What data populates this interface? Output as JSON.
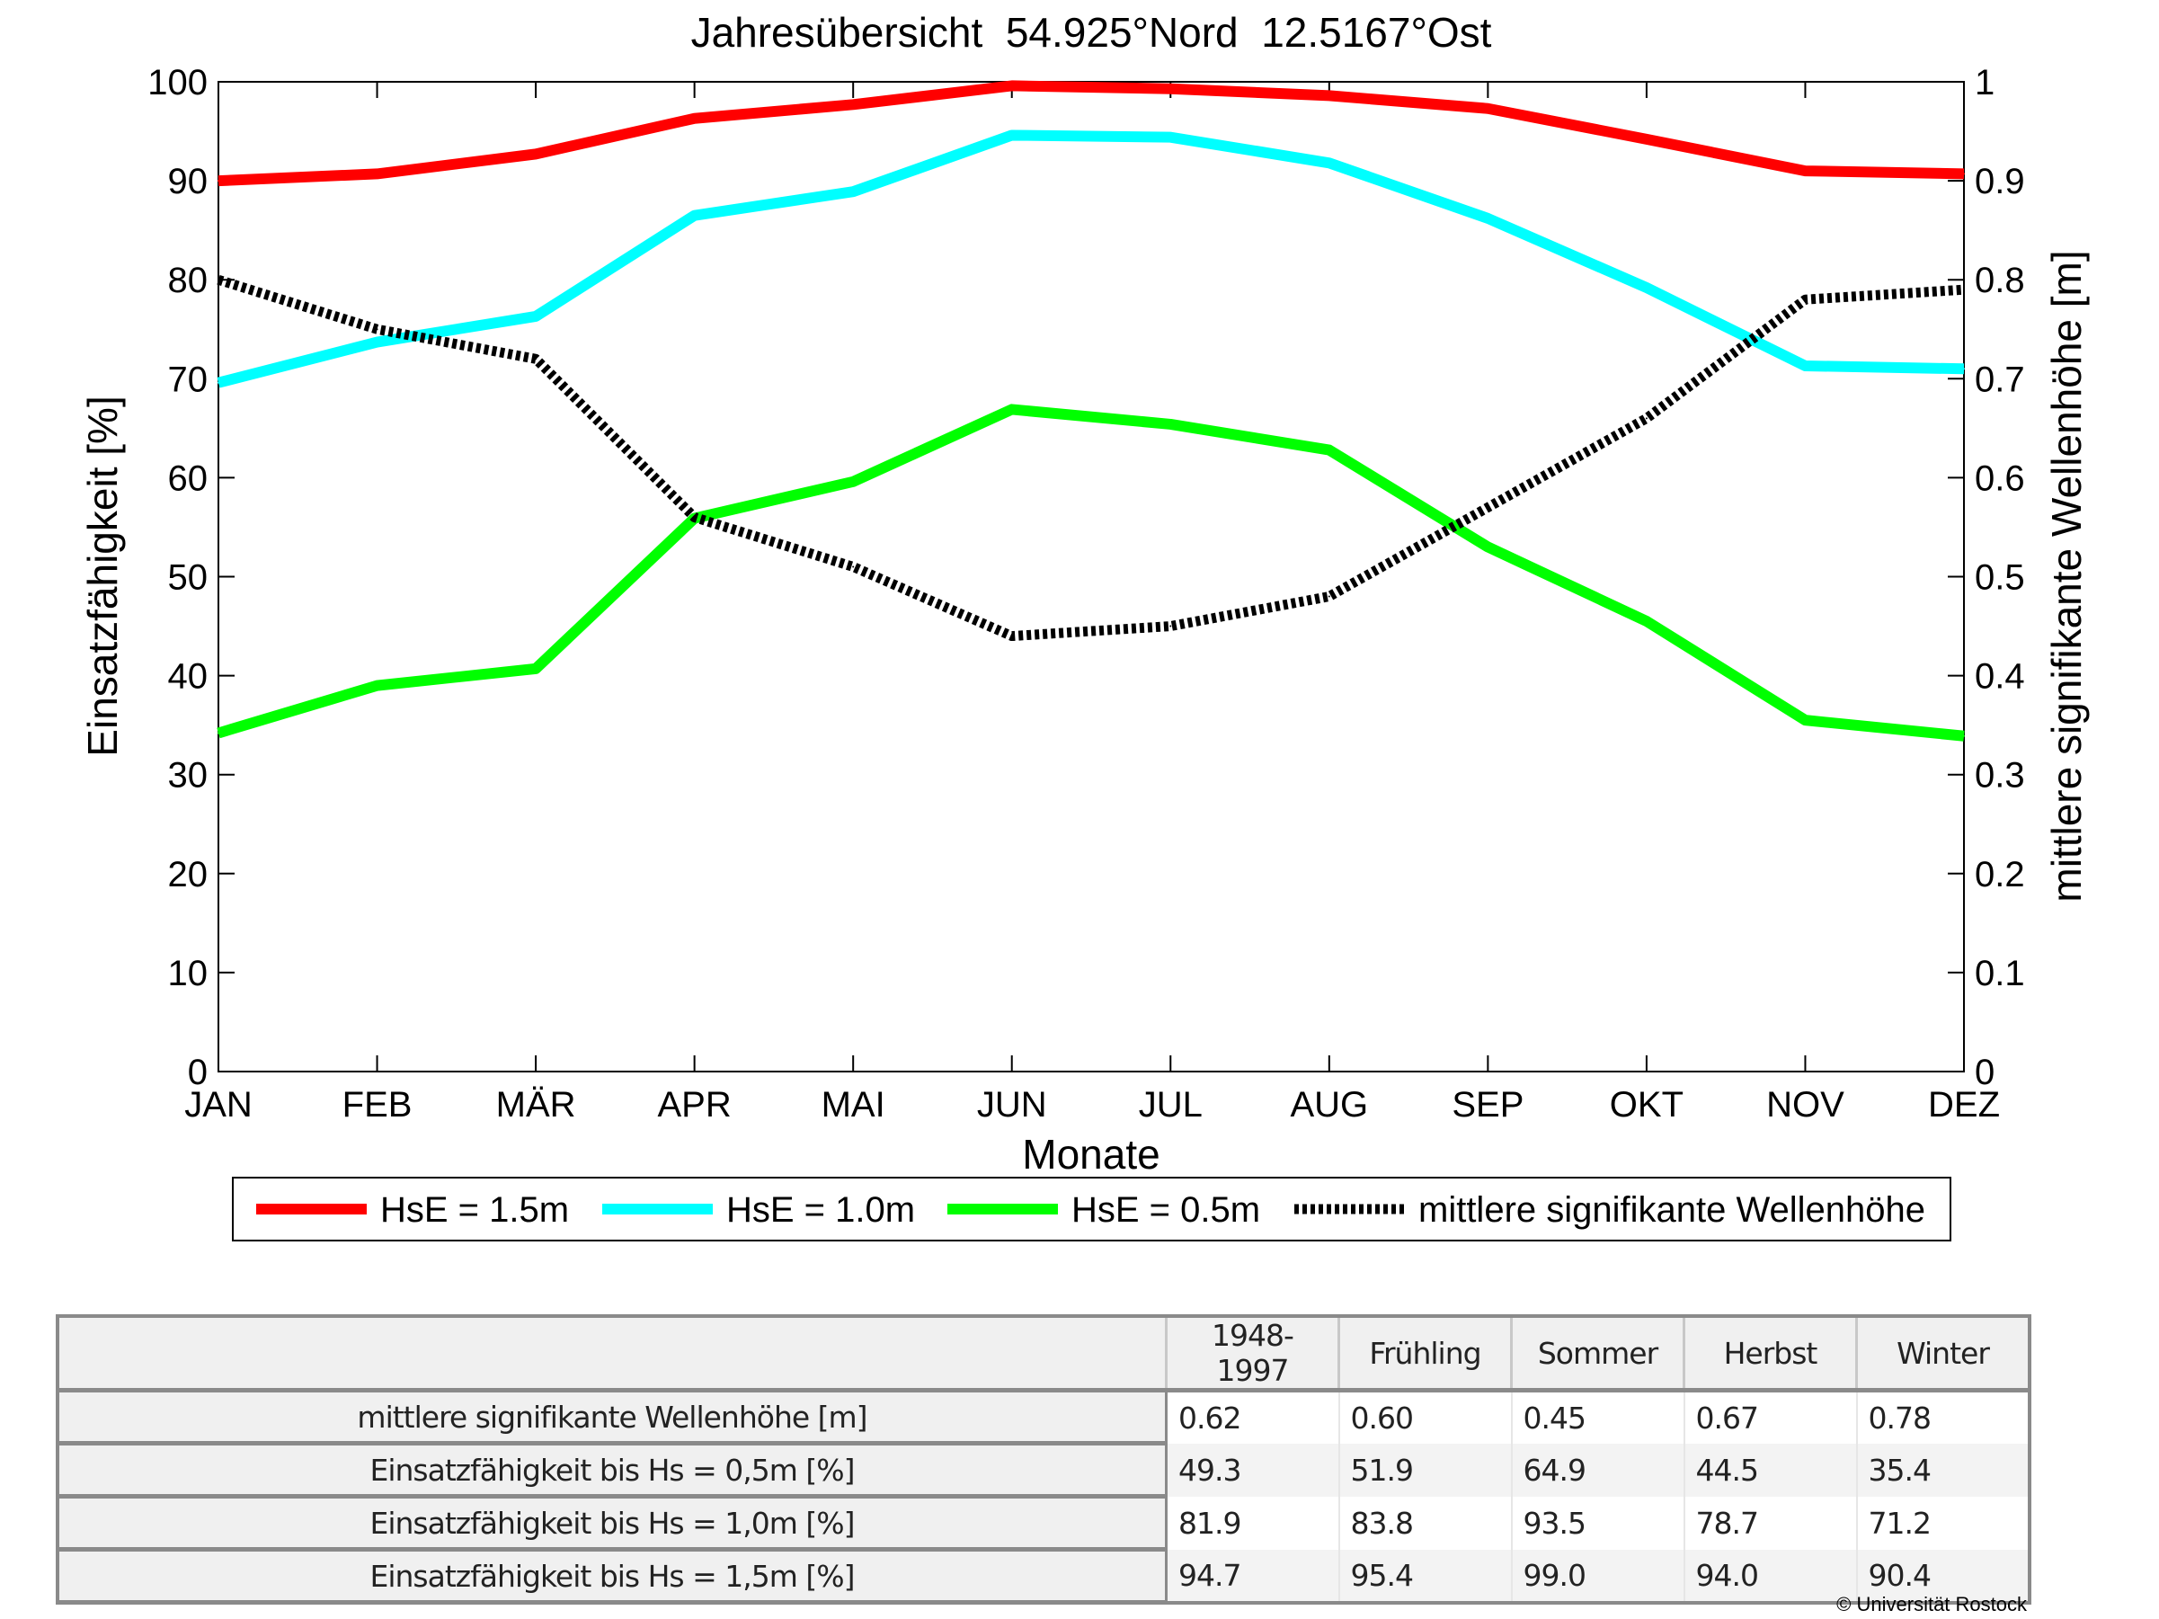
{
  "chart_data": {
    "type": "line",
    "title": "Jahresübersicht  54.925°Nord  12.5167°Ost",
    "xlabel": "Monate",
    "ylabel": "Einsatzfähigkeit [%]",
    "y2label": "mittlere signifikante Wellenhöhe [m]",
    "ylim": [
      0,
      100
    ],
    "y2lim": [
      0,
      1
    ],
    "yticks": [
      "0",
      "10",
      "20",
      "30",
      "40",
      "50",
      "60",
      "70",
      "80",
      "90",
      "100"
    ],
    "y2ticks": [
      "0",
      "0.1",
      "0.2",
      "0.3",
      "0.4",
      "0.5",
      "0.6",
      "0.7",
      "0.8",
      "0.9",
      "1"
    ],
    "categories": [
      "JAN",
      "FEB",
      "MÄR",
      "APR",
      "MAI",
      "JUN",
      "JUL",
      "AUG",
      "SEP",
      "OKT",
      "NOV",
      "DEZ"
    ],
    "series": [
      {
        "name": "HsE = 1.5m",
        "axis": "left",
        "color": "#ff0000",
        "style": "solid",
        "values": [
          90.0,
          90.7,
          92.7,
          96.3,
          97.7,
          99.6,
          99.3,
          98.6,
          97.3,
          94.2,
          91.0,
          90.7
        ]
      },
      {
        "name": "HsE = 1.0m",
        "axis": "left",
        "color": "#00ffff",
        "style": "solid",
        "values": [
          69.6,
          73.7,
          76.3,
          86.5,
          88.9,
          94.6,
          94.4,
          91.8,
          86.2,
          79.2,
          71.3,
          71.0
        ]
      },
      {
        "name": "HsE = 0.5m",
        "axis": "left",
        "color": "#00ff00",
        "style": "solid",
        "values": [
          34.2,
          39.0,
          40.7,
          55.9,
          59.6,
          66.9,
          65.4,
          62.8,
          53.0,
          45.5,
          35.5,
          33.9
        ]
      },
      {
        "name": "mittlere signifikante Wellenhöhe",
        "axis": "right",
        "color": "#000000",
        "style": "dotted",
        "values": [
          0.8,
          0.75,
          0.72,
          0.56,
          0.51,
          0.44,
          0.45,
          0.48,
          0.57,
          0.66,
          0.78,
          0.79
        ]
      }
    ],
    "legend": "bottom"
  },
  "table": {
    "headers": [
      "",
      "1948-1997",
      "Frühling",
      "Sommer",
      "Herbst",
      "Winter"
    ],
    "rows": [
      {
        "label": "mittlere signifikante Wellenhöhe [m]",
        "values": [
          "0.62",
          "0.60",
          "0.45",
          "0.67",
          "0.78"
        ]
      },
      {
        "label": "Einsatzfähigkeit bis Hs = 0,5m [%]",
        "values": [
          "49.3",
          "51.9",
          "64.9",
          "44.5",
          "35.4"
        ]
      },
      {
        "label": "Einsatzfähigkeit bis Hs = 1,0m [%]",
        "values": [
          "81.9",
          "83.8",
          "93.5",
          "78.7",
          "71.2"
        ]
      },
      {
        "label": "Einsatzfähigkeit bis Hs = 1,5m [%]",
        "values": [
          "94.7",
          "95.4",
          "99.0",
          "94.0",
          "90.4"
        ]
      }
    ]
  },
  "copyright": "© Universität Rostock"
}
